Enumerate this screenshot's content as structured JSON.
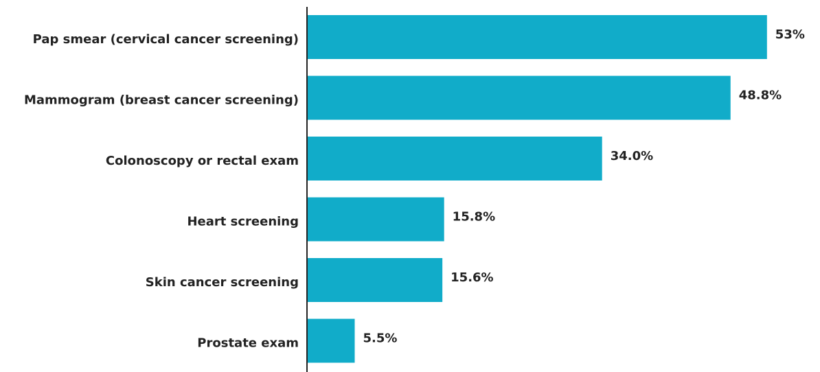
{
  "chart_data": {
    "type": "bar",
    "orientation": "horizontal",
    "categories": [
      "Pap smear (cervical cancer screening)",
      "Mammogram (breast cancer screening)",
      "Colonoscopy or rectal exam",
      "Heart screening",
      "Skin cancer screening",
      "Prostate exam"
    ],
    "values": [
      53,
      48.8,
      34.0,
      15.8,
      15.6,
      5.5
    ],
    "value_labels": [
      "53%",
      "48.8%",
      "34.0%",
      "15.8%",
      "15.6%",
      "5.5%"
    ],
    "color": "#11acc9",
    "xlim": [
      0,
      58
    ]
  }
}
